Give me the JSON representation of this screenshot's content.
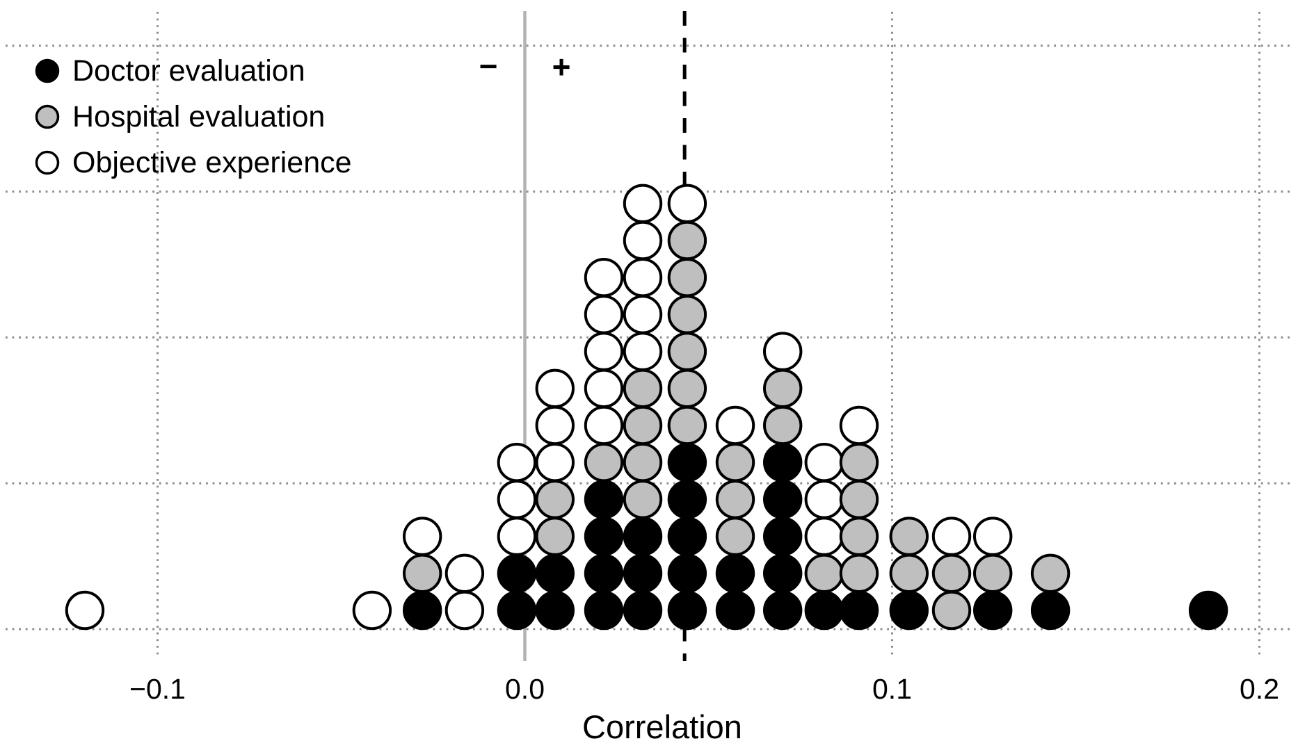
{
  "chart": {
    "legend": {
      "items": [
        {
          "code": "D",
          "label": "Doctor evaluation",
          "color": "#000000"
        },
        {
          "code": "H",
          "label": "Hospital evaluation",
          "color": "#bfbfbf"
        },
        {
          "code": "O",
          "label": "Objective experience",
          "color": "#ffffff"
        }
      ]
    },
    "annotations": {
      "negative_sign": "−",
      "positive_sign": "+"
    },
    "x_axis": {
      "title": "Correlation",
      "ticks": [
        {
          "value": -0.1,
          "label": "−0.1"
        },
        {
          "value": 0.0,
          "label": "0.0"
        },
        {
          "value": 0.1,
          "label": "0.1"
        },
        {
          "value": 0.2,
          "label": "0.2"
        }
      ]
    },
    "colors": {
      "dot_stroke": "#000000",
      "gridline": "#8c8c8c",
      "zero_line": "#b3b3b3",
      "mean_line": "#000000",
      "background": "#ffffff"
    }
  },
  "chart_data": {
    "type": "dot-histogram",
    "xlabel": "Correlation",
    "x_range": [
      -0.13,
      0.21
    ],
    "x_gridlines": [
      -0.1,
      0.1,
      0.2
    ],
    "y_gridline_counts": [
      0,
      4,
      8,
      12,
      16
    ],
    "dot_unit": 1,
    "reference_lines": [
      {
        "name": "zero",
        "x": 0.0,
        "style": "solid"
      },
      {
        "name": "mean",
        "x": 0.0435,
        "style": "dashed"
      }
    ],
    "columns": [
      {
        "x": -0.1198,
        "stack": [
          "O"
        ]
      },
      {
        "x": -0.0416,
        "stack": [
          "O"
        ]
      },
      {
        "x": -0.0279,
        "stack": [
          "D",
          "H",
          "O"
        ]
      },
      {
        "x": -0.0164,
        "stack": [
          "O",
          "O"
        ]
      },
      {
        "x": -0.0022,
        "stack": [
          "D",
          "D",
          "O",
          "O",
          "O"
        ]
      },
      {
        "x": 0.0082,
        "stack": [
          "D",
          "D",
          "H",
          "H",
          "O",
          "O",
          "O"
        ]
      },
      {
        "x": 0.0215,
        "stack": [
          "D",
          "D",
          "D",
          "D",
          "H",
          "O",
          "O",
          "O",
          "O",
          "O"
        ]
      },
      {
        "x": 0.0321,
        "stack": [
          "D",
          "D",
          "D",
          "H",
          "H",
          "H",
          "H",
          "O",
          "O",
          "O",
          "O",
          "O"
        ]
      },
      {
        "x": 0.0442,
        "stack": [
          "D",
          "D",
          "D",
          "D",
          "D",
          "H",
          "H",
          "H",
          "H",
          "H",
          "H",
          "O"
        ]
      },
      {
        "x": 0.0573,
        "stack": [
          "D",
          "D",
          "H",
          "H",
          "H",
          "O"
        ]
      },
      {
        "x": 0.0702,
        "stack": [
          "D",
          "D",
          "D",
          "D",
          "D",
          "H",
          "H",
          "O"
        ]
      },
      {
        "x": 0.0815,
        "stack": [
          "D",
          "H",
          "O",
          "O",
          "O"
        ]
      },
      {
        "x": 0.091,
        "stack": [
          "D",
          "H",
          "H",
          "H",
          "H",
          "O"
        ]
      },
      {
        "x": 0.1046,
        "stack": [
          "D",
          "H",
          "H"
        ]
      },
      {
        "x": 0.1162,
        "stack": [
          "H",
          "H",
          "O"
        ]
      },
      {
        "x": 0.1274,
        "stack": [
          "D",
          "H",
          "O"
        ]
      },
      {
        "x": 0.1431,
        "stack": [
          "D",
          "H"
        ]
      },
      {
        "x": 0.1861,
        "stack": [
          "D"
        ]
      }
    ]
  }
}
